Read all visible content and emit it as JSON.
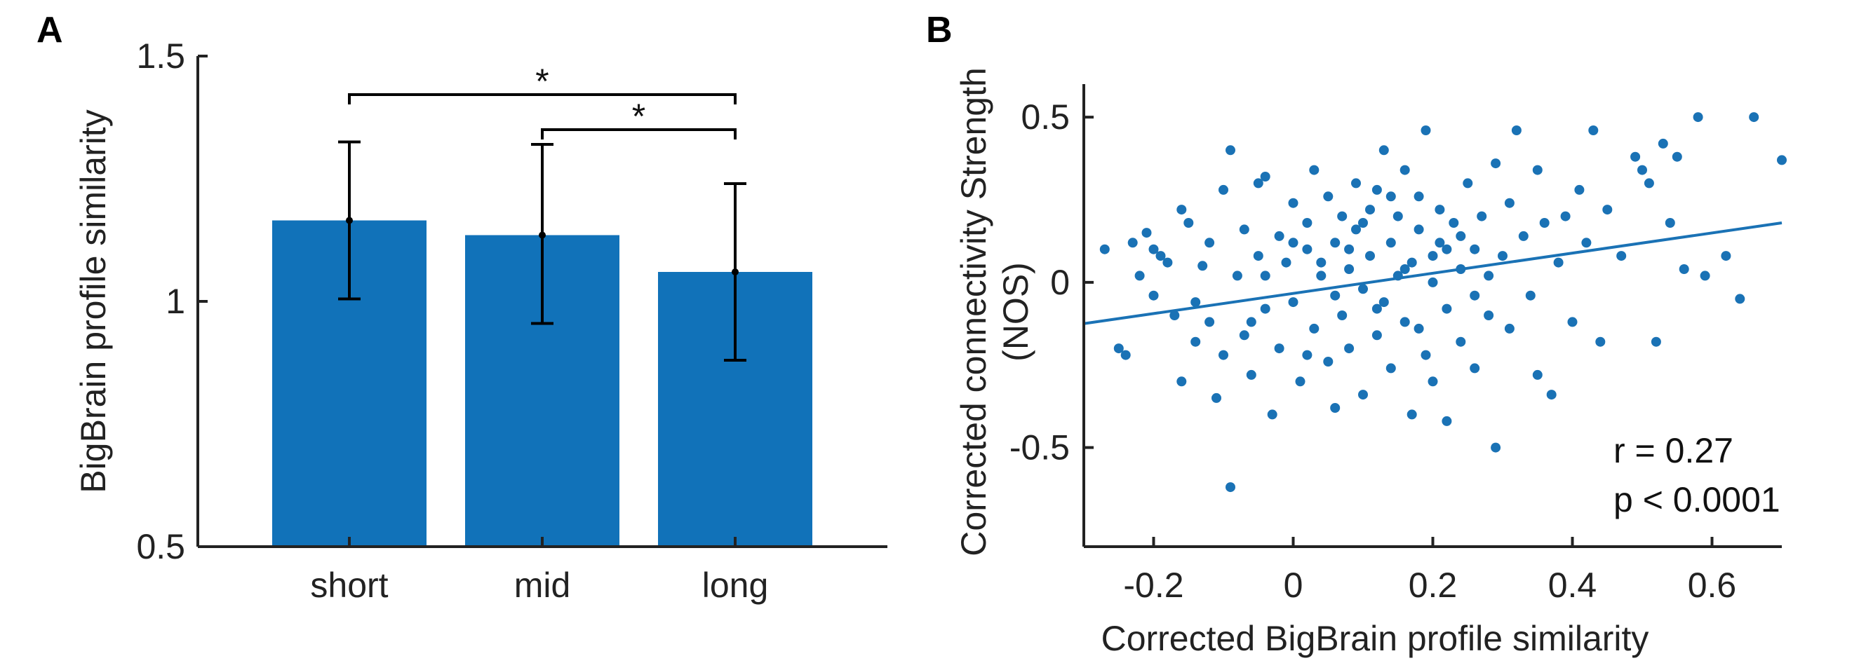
{
  "chart_data": [
    {
      "panel_label": "A",
      "type": "bar",
      "ylabel": "BigBrain profile similarity",
      "xlabel": "",
      "ylim": [
        0.5,
        1.5
      ],
      "yticks": [
        0.5,
        1,
        1.5
      ],
      "ytick_labels": [
        "0.5",
        "1",
        "1.5"
      ],
      "categories": [
        "short",
        "mid",
        "long"
      ],
      "values": [
        1.165,
        1.135,
        1.06
      ],
      "error_low": [
        1.005,
        0.955,
        0.88
      ],
      "error_high": [
        1.325,
        1.32,
        1.24
      ],
      "bar_color": "#1172B9",
      "significance": [
        {
          "from": "short",
          "to": "long",
          "symbol": "*"
        },
        {
          "from": "mid",
          "to": "long",
          "symbol": "*"
        }
      ]
    },
    {
      "panel_label": "B",
      "type": "scatter",
      "xlabel": "Corrected BigBrain profile similarity",
      "ylabel_line1": "Corrected connectivity Strength",
      "ylabel_line2": "(NOS)",
      "xlim": [
        -0.3,
        0.7
      ],
      "ylim": [
        -0.8,
        0.6
      ],
      "xticks": [
        -0.2,
        0,
        0.2,
        0.4,
        0.6
      ],
      "xtick_labels": [
        "-0.2",
        "0",
        "0.2",
        "0.4",
        "0.6"
      ],
      "yticks": [
        -0.5,
        0,
        0.5
      ],
      "ytick_labels": [
        "-0.5",
        "0",
        "0.5"
      ],
      "point_color": "#1A72B5",
      "fit_line": {
        "x": [
          -0.3,
          0.7
        ],
        "y": [
          -0.125,
          0.18
        ]
      },
      "annotation_r": "r = 0.27",
      "annotation_p": "p < 0.0001",
      "points": [
        [
          -0.27,
          0.1
        ],
        [
          -0.25,
          -0.2
        ],
        [
          -0.24,
          -0.22
        ],
        [
          -0.23,
          0.12
        ],
        [
          -0.22,
          0.02
        ],
        [
          -0.21,
          0.15
        ],
        [
          -0.2,
          -0.04
        ],
        [
          -0.19,
          0.08
        ],
        [
          -0.18,
          0.06
        ],
        [
          -0.17,
          -0.1
        ],
        [
          -0.16,
          0.22
        ],
        [
          -0.16,
          -0.3
        ],
        [
          -0.15,
          0.18
        ],
        [
          -0.14,
          -0.18
        ],
        [
          -0.13,
          0.05
        ],
        [
          -0.12,
          -0.12
        ],
        [
          -0.12,
          0.12
        ],
        [
          -0.11,
          -0.35
        ],
        [
          -0.1,
          0.28
        ],
        [
          -0.1,
          -0.22
        ],
        [
          -0.09,
          0.4
        ],
        [
          -0.09,
          -0.62
        ],
        [
          -0.08,
          0.02
        ],
        [
          -0.07,
          0.16
        ],
        [
          -0.07,
          -0.16
        ],
        [
          -0.06,
          -0.28
        ],
        [
          -0.05,
          0.3
        ],
        [
          -0.05,
          0.08
        ],
        [
          -0.04,
          -0.08
        ],
        [
          -0.04,
          0.32
        ],
        [
          -0.03,
          -0.4
        ],
        [
          -0.02,
          0.14
        ],
        [
          -0.02,
          -0.2
        ],
        [
          -0.01,
          0.06
        ],
        [
          0.0,
          0.24
        ],
        [
          0.0,
          -0.06
        ],
        [
          0.01,
          -0.3
        ],
        [
          0.02,
          0.1
        ],
        [
          0.02,
          0.18
        ],
        [
          0.03,
          -0.14
        ],
        [
          0.03,
          0.34
        ],
        [
          0.04,
          0.02
        ],
        [
          0.05,
          -0.24
        ],
        [
          0.05,
          0.26
        ],
        [
          0.06,
          0.12
        ],
        [
          0.06,
          -0.38
        ],
        [
          0.07,
          0.2
        ],
        [
          0.07,
          -0.1
        ],
        [
          0.08,
          0.04
        ],
        [
          0.08,
          -0.2
        ],
        [
          0.09,
          0.3
        ],
        [
          0.09,
          0.16
        ],
        [
          0.1,
          -0.02
        ],
        [
          0.1,
          -0.34
        ],
        [
          0.11,
          0.22
        ],
        [
          0.11,
          0.08
        ],
        [
          0.12,
          -0.16
        ],
        [
          0.12,
          0.28
        ],
        [
          0.13,
          0.4
        ],
        [
          0.13,
          -0.06
        ],
        [
          0.14,
          0.12
        ],
        [
          0.14,
          -0.26
        ],
        [
          0.15,
          0.2
        ],
        [
          0.15,
          0.02
        ],
        [
          0.16,
          -0.12
        ],
        [
          0.16,
          0.34
        ],
        [
          0.17,
          0.06
        ],
        [
          0.17,
          -0.4
        ],
        [
          0.18,
          0.26
        ],
        [
          0.18,
          0.16
        ],
        [
          0.19,
          -0.22
        ],
        [
          0.19,
          0.46
        ],
        [
          0.2,
          0.0
        ],
        [
          0.2,
          -0.3
        ],
        [
          0.21,
          0.12
        ],
        [
          0.21,
          0.22
        ],
        [
          0.22,
          -0.08
        ],
        [
          0.22,
          -0.42
        ],
        [
          0.23,
          0.18
        ],
        [
          0.24,
          0.04
        ],
        [
          0.24,
          -0.18
        ],
        [
          0.25,
          0.3
        ],
        [
          0.26,
          0.1
        ],
        [
          0.26,
          -0.26
        ],
        [
          0.27,
          0.2
        ],
        [
          0.28,
          -0.1
        ],
        [
          0.29,
          0.36
        ],
        [
          0.29,
          -0.5
        ],
        [
          0.3,
          0.08
        ],
        [
          0.31,
          0.24
        ],
        [
          0.31,
          -0.14
        ],
        [
          0.32,
          0.46
        ],
        [
          0.33,
          0.14
        ],
        [
          0.34,
          -0.04
        ],
        [
          0.35,
          0.34
        ],
        [
          0.35,
          -0.28
        ],
        [
          0.36,
          0.18
        ],
        [
          0.37,
          -0.34
        ],
        [
          0.38,
          0.06
        ],
        [
          0.39,
          0.2
        ],
        [
          0.4,
          -0.12
        ],
        [
          0.41,
          0.28
        ],
        [
          0.42,
          0.12
        ],
        [
          0.43,
          0.46
        ],
        [
          0.44,
          -0.18
        ],
        [
          0.45,
          0.22
        ],
        [
          0.47,
          0.08
        ],
        [
          0.49,
          0.38
        ],
        [
          0.5,
          0.34
        ],
        [
          0.51,
          0.3
        ],
        [
          0.52,
          -0.18
        ],
        [
          0.53,
          0.42
        ],
        [
          0.54,
          0.18
        ],
        [
          0.55,
          0.38
        ],
        [
          0.56,
          0.04
        ],
        [
          0.58,
          0.5
        ],
        [
          0.59,
          0.02
        ],
        [
          0.62,
          0.08
        ],
        [
          0.64,
          -0.05
        ],
        [
          0.66,
          0.5
        ],
        [
          0.7,
          0.37
        ],
        [
          -0.2,
          0.1
        ],
        [
          -0.14,
          -0.06
        ],
        [
          -0.06,
          -0.12
        ],
        [
          0.02,
          -0.22
        ],
        [
          0.04,
          0.06
        ],
        [
          0.08,
          0.1
        ],
        [
          0.12,
          -0.08
        ],
        [
          0.16,
          0.04
        ],
        [
          0.2,
          0.08
        ],
        [
          0.24,
          0.14
        ],
        [
          0.28,
          0.02
        ],
        [
          0.1,
          0.18
        ],
        [
          0.06,
          -0.04
        ],
        [
          0.0,
          0.12
        ],
        [
          -0.04,
          0.02
        ],
        [
          0.14,
          0.26
        ],
        [
          0.18,
          -0.14
        ],
        [
          0.22,
          0.1
        ],
        [
          0.26,
          -0.04
        ]
      ]
    }
  ],
  "panel_b_letter": "B"
}
